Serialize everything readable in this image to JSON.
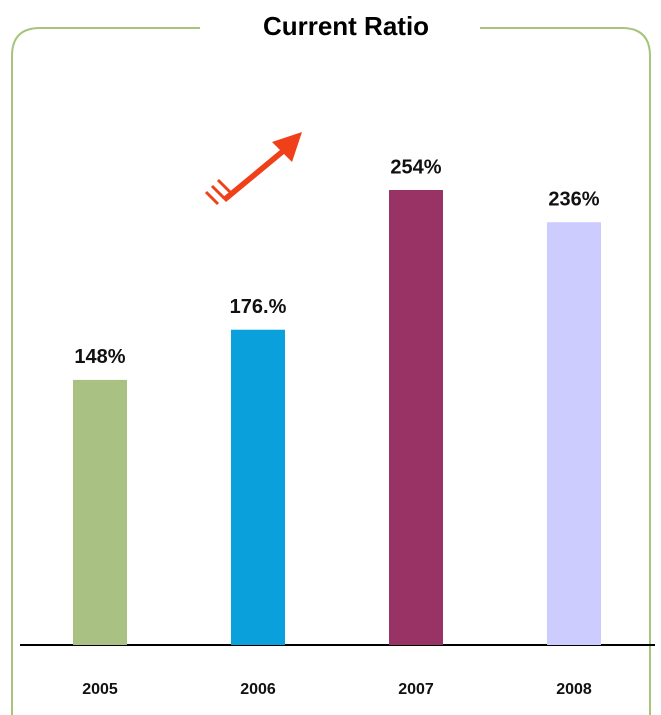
{
  "chart_data": {
    "type": "bar",
    "title": "Current Ratio",
    "categories": [
      "2005",
      "2006",
      "2007",
      "2008"
    ],
    "values": [
      148,
      176,
      254,
      236
    ],
    "value_labels": [
      "148%",
      "176.%",
      "254%",
      "236%"
    ],
    "colors": [
      "#a9c283",
      "#0aa0dc",
      "#993366",
      "#ccccff"
    ]
  }
}
